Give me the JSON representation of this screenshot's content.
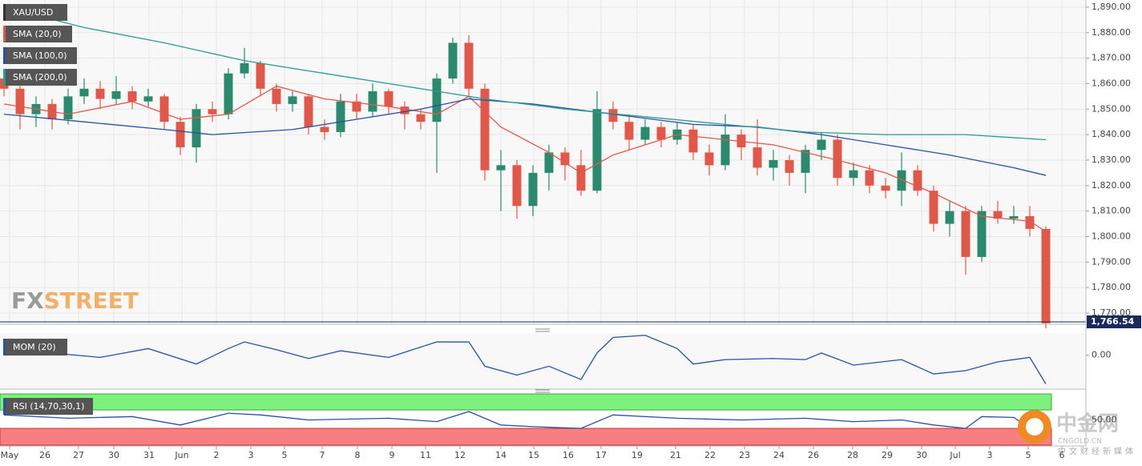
{
  "chart_data": {
    "type": "candlestick",
    "title": "XAU/USD",
    "up_color": "#2b8a6e",
    "down_color": "#e0584a",
    "open": [
      1862,
      1858,
      1848,
      1852,
      1846,
      1855,
      1858,
      1854,
      1857,
      1853,
      1855,
      1845,
      1835,
      1850,
      1848,
      1864,
      1868,
      1858,
      1852,
      1855,
      1843,
      1841,
      1853,
      1849,
      1857,
      1851,
      1848,
      1845,
      1862,
      1876,
      1858,
      1826,
      1828,
      1812,
      1825,
      1833,
      1828,
      1818,
      1850,
      1845,
      1838,
      1843,
      1838,
      1842,
      1833,
      1828,
      1840,
      1835,
      1827,
      1830,
      1825,
      1834,
      1838,
      1823,
      1826,
      1820,
      1818,
      1826,
      1818,
      1805,
      1810,
      1792,
      1810,
      1807,
      1808,
      1803
    ],
    "high": [
      1865,
      1860,
      1855,
      1854,
      1858,
      1862,
      1861,
      1863,
      1859,
      1858,
      1856,
      1847,
      1852,
      1853,
      1866,
      1874,
      1869,
      1860,
      1857,
      1856,
      1846,
      1856,
      1856,
      1860,
      1858,
      1853,
      1850,
      1864,
      1878,
      1879,
      1860,
      1834,
      1830,
      1828,
      1836,
      1835,
      1834,
      1857,
      1853,
      1848,
      1846,
      1845,
      1845,
      1844,
      1836,
      1848,
      1842,
      1846,
      1834,
      1832,
      1836,
      1841,
      1840,
      1829,
      1828,
      1823,
      1833,
      1828,
      1820,
      1814,
      1812,
      1812,
      1814,
      1812,
      1812,
      1804
    ],
    "low": [
      1855,
      1842,
      1843,
      1842,
      1844,
      1852,
      1850,
      1852,
      1850,
      1851,
      1842,
      1832,
      1829,
      1845,
      1846,
      1862,
      1855,
      1849,
      1849,
      1840,
      1838,
      1839,
      1846,
      1847,
      1848,
      1842,
      1842,
      1825,
      1860,
      1855,
      1822,
      1810,
      1807,
      1808,
      1818,
      1822,
      1816,
      1817,
      1842,
      1834,
      1836,
      1835,
      1836,
      1830,
      1824,
      1826,
      1830,
      1824,
      1822,
      1820,
      1817,
      1830,
      1820,
      1820,
      1817,
      1815,
      1812,
      1816,
      1802,
      1800,
      1785,
      1790,
      1805,
      1805,
      1800,
      1764
    ],
    "close": [
      1858,
      1848,
      1852,
      1846,
      1855,
      1858,
      1854,
      1857,
      1853,
      1855,
      1845,
      1835,
      1850,
      1848,
      1864,
      1868,
      1858,
      1852,
      1855,
      1843,
      1841,
      1853,
      1849,
      1857,
      1851,
      1848,
      1845,
      1862,
      1876,
      1858,
      1826,
      1828,
      1812,
      1825,
      1833,
      1828,
      1818,
      1850,
      1845,
      1838,
      1843,
      1838,
      1842,
      1833,
      1828,
      1840,
      1835,
      1827,
      1830,
      1825,
      1834,
      1838,
      1823,
      1826,
      1820,
      1818,
      1826,
      1818,
      1805,
      1810,
      1792,
      1810,
      1807,
      1808,
      1803,
      1766
    ],
    "series": [
      {
        "name": "SMA (20,0)",
        "color": "#e0584a",
        "x": [
          0,
          4,
          8,
          11,
          14,
          17,
          20,
          24,
          27,
          29,
          31,
          34,
          36,
          38,
          42,
          45,
          48,
          52,
          55,
          58,
          61,
          64,
          65
        ],
        "values": [
          1852,
          1848,
          1853,
          1846,
          1848,
          1859,
          1854,
          1851,
          1848,
          1855,
          1843,
          1833,
          1825,
          1832,
          1840,
          1838,
          1836,
          1830,
          1825,
          1817,
          1808,
          1806,
          1802
        ]
      },
      {
        "name": "SMA (100,0)",
        "color": "#2a4fa8",
        "x": [
          0,
          5,
          10,
          13,
          18,
          22,
          26,
          29,
          33,
          38,
          43,
          47,
          51,
          55,
          59,
          63,
          65
        ],
        "values": [
          1848,
          1845,
          1842,
          1840,
          1842,
          1846,
          1850,
          1854,
          1852,
          1848,
          1844,
          1843,
          1840,
          1836,
          1832,
          1827,
          1824
        ]
      },
      {
        "name": "SMA (200,0)",
        "color": "#2a9d8f",
        "x": [
          0,
          5,
          10,
          15,
          20,
          25,
          30,
          35,
          40,
          45,
          50,
          55,
          60,
          65
        ],
        "values": [
          1890,
          1882,
          1876,
          1869,
          1864,
          1859,
          1854,
          1850,
          1847,
          1844,
          1841,
          1840,
          1840,
          1838
        ]
      }
    ],
    "ylim": [
      1765.6,
      1892.8
    ],
    "yticks": [
      {
        "value": 1770,
        "label": "1,770.00"
      },
      {
        "value": 1780,
        "label": "1,780.00"
      },
      {
        "value": 1790,
        "label": "1,790.00"
      },
      {
        "value": 1800,
        "label": "1,800.00"
      },
      {
        "value": 1810,
        "label": "1,810.00"
      },
      {
        "value": 1820,
        "label": "1,820.00"
      },
      {
        "value": 1830,
        "label": "1,830.00"
      },
      {
        "value": 1840,
        "label": "1,840.00"
      },
      {
        "value": 1850,
        "label": "1,850.00"
      },
      {
        "value": 1860,
        "label": "1,860.00"
      },
      {
        "value": 1870,
        "label": "1,870.00"
      },
      {
        "value": 1880,
        "label": "1,880.00"
      },
      {
        "value": 1890,
        "label": "1,890.00"
      }
    ],
    "last_price": {
      "value": 1766.54,
      "label": "1,766.54"
    },
    "xlim": [
      -0.25,
      67.5
    ],
    "xticks": [
      {
        "value": 0.35,
        "label": "May"
      },
      {
        "value": 2.55,
        "label": "26"
      },
      {
        "value": 4.65,
        "label": "27"
      },
      {
        "value": 6.85,
        "label": "30"
      },
      {
        "value": 9.05,
        "label": "31"
      },
      {
        "value": 11.1,
        "label": "Jun"
      },
      {
        "value": 13.25,
        "label": "2"
      },
      {
        "value": 15.4,
        "label": "3"
      },
      {
        "value": 17.5,
        "label": "5"
      },
      {
        "value": 19.85,
        "label": "7"
      },
      {
        "value": 22.05,
        "label": "8"
      },
      {
        "value": 24.2,
        "label": "9"
      },
      {
        "value": 26.3,
        "label": "11"
      },
      {
        "value": 28.45,
        "label": "12"
      },
      {
        "value": 31,
        "label": "14"
      },
      {
        "value": 33.05,
        "label": "15"
      },
      {
        "value": 35.2,
        "label": "16"
      },
      {
        "value": 37.25,
        "label": "17"
      },
      {
        "value": 39.5,
        "label": "19"
      },
      {
        "value": 41.9,
        "label": "21"
      },
      {
        "value": 44.05,
        "label": "22"
      },
      {
        "value": 46.2,
        "label": "23"
      },
      {
        "value": 48.35,
        "label": "24"
      },
      {
        "value": 50.5,
        "label": "26"
      },
      {
        "value": 52.95,
        "label": "28"
      },
      {
        "value": 55.1,
        "label": "29"
      },
      {
        "value": 57.25,
        "label": "30"
      },
      {
        "value": 59.35,
        "label": "Jul"
      },
      {
        "value": 61.5,
        "label": "3"
      },
      {
        "value": 63.9,
        "label": "5"
      },
      {
        "value": 66,
        "label": "6"
      }
    ],
    "grid": true,
    "mom": {
      "name": "MOM (20)",
      "color": "#2a4fa8",
      "ylim": [
        -30,
        20
      ],
      "yticks": [
        {
          "value": 0,
          "label": "0.00"
        }
      ],
      "x": [
        0,
        3,
        6,
        9,
        12,
        14,
        15,
        17,
        19,
        21,
        24,
        27,
        29,
        30,
        32,
        34,
        36,
        37,
        38,
        40,
        42,
        43,
        45,
        48,
        50,
        51,
        53,
        56,
        58,
        60,
        62,
        64,
        65
      ],
      "values": [
        14,
        2,
        -2,
        6,
        -8,
        6,
        12,
        5,
        -3,
        4,
        -2,
        12,
        12,
        -10,
        -18,
        -10,
        -22,
        2,
        16,
        18,
        6,
        -8,
        -4,
        -3,
        -4,
        2,
        -9,
        -4,
        -17,
        -14,
        -6,
        -2,
        -26
      ]
    },
    "rsi": {
      "name": "RSI (14,70,30,1)",
      "color": "#2a4fa8",
      "ylim": [
        20,
        80
      ],
      "yticks": [
        {
          "value": 50,
          "label": "50.00"
        }
      ],
      "x": [
        0,
        4,
        8,
        11,
        14,
        16,
        19,
        24,
        27,
        29,
        31,
        33,
        36,
        38,
        42,
        46,
        50,
        53,
        56,
        58,
        60,
        61,
        63,
        65
      ],
      "values": [
        56,
        52,
        54,
        44,
        58,
        56,
        50,
        52,
        48,
        60,
        44,
        42,
        40,
        56,
        52,
        50,
        52,
        48,
        50,
        44,
        40,
        54,
        53,
        28
      ]
    },
    "watermark_fx": "FX",
    "watermark_street": "STREET",
    "cn_logo": "中金网",
    "cn_site": "CNGOLD.CN",
    "cn_tagline": "中文财经新媒体"
  }
}
